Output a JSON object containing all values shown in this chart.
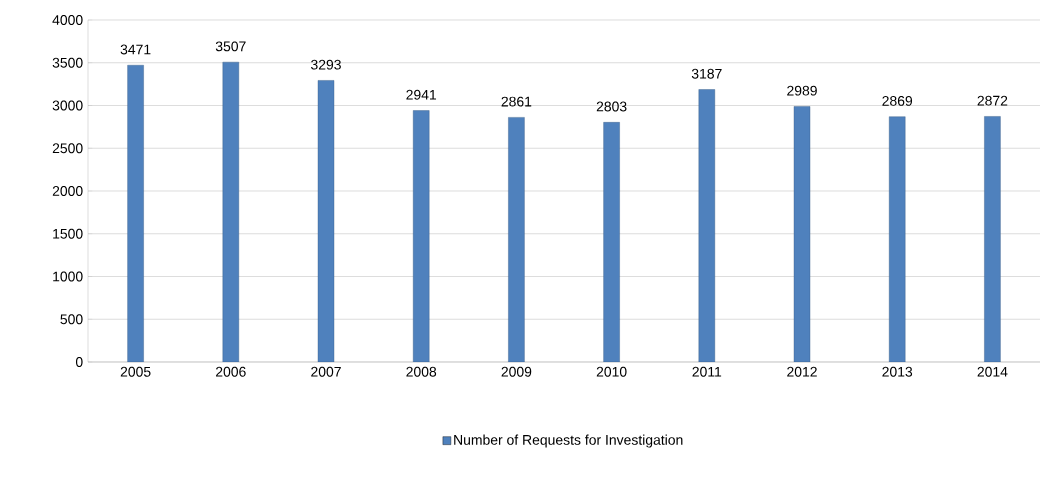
{
  "chart_data": {
    "type": "bar",
    "categories": [
      "2005",
      "2006",
      "2007",
      "2008",
      "2009",
      "2010",
      "2011",
      "2012",
      "2013",
      "2014"
    ],
    "series": [
      {
        "name": "Number of Requests for Investigation",
        "color": "#4f81bd",
        "values": [
          3471,
          3507,
          3293,
          2941,
          2861,
          2803,
          3187,
          2989,
          2869,
          2872
        ]
      }
    ],
    "ylim": [
      0,
      4000
    ],
    "yticks": [
      0,
      500,
      1000,
      1500,
      2000,
      2500,
      3000,
      3500,
      4000
    ],
    "grid": "y",
    "legend": "bottom",
    "data_labels": true
  }
}
